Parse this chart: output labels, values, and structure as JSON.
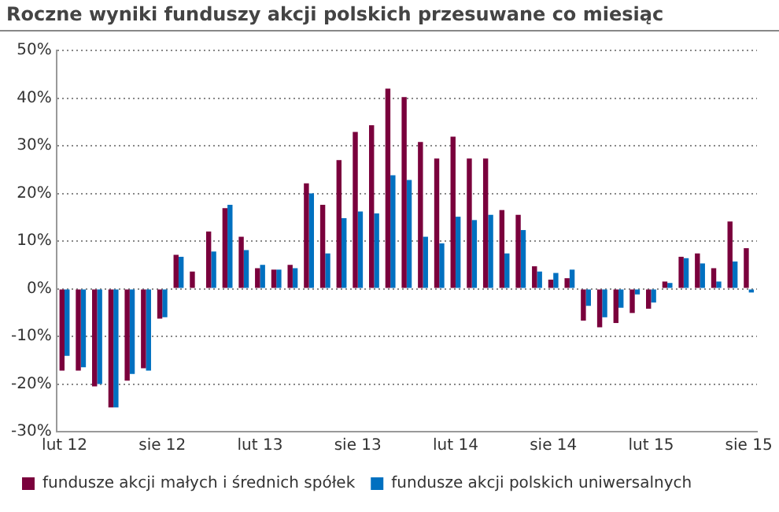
{
  "chart_data": {
    "type": "bar",
    "title": "Roczne wyniki funduszy akcji polskich przesuwane co miesiąc",
    "categories": [
      "lut 12",
      null,
      null,
      null,
      null,
      null,
      "sie 12",
      null,
      null,
      null,
      null,
      null,
      "lut 13",
      null,
      null,
      null,
      null,
      null,
      "sie 13",
      null,
      null,
      null,
      null,
      null,
      "lut 14",
      null,
      null,
      null,
      null,
      null,
      "sie 14",
      null,
      null,
      null,
      null,
      null,
      "lut 15",
      null,
      null,
      null,
      null,
      null,
      "sie 15"
    ],
    "series": [
      {
        "name": "fundusze akcji małych i średnich spółek",
        "color": "#7a003c",
        "values": [
          -17.2,
          -17.2,
          -20.5,
          -24.9,
          -19.3,
          -16.7,
          -6.3,
          7.1,
          3.6,
          12.0,
          16.9,
          10.9,
          4.3,
          4.0,
          5.0,
          22.1,
          17.6,
          27.0,
          32.9,
          34.3,
          42.0,
          40.2,
          30.8,
          27.3,
          31.9,
          27.3,
          27.3,
          16.5,
          15.5,
          4.7,
          1.9,
          2.2,
          -6.7,
          -8.1,
          -7.2,
          -5.1,
          -4.2,
          1.5,
          6.7,
          7.4,
          4.3,
          14.1,
          8.5
        ]
      },
      {
        "name": "fundusze akcji polskich uniwersalnych",
        "color": "#0070c0",
        "values": [
          -14.1,
          -16.5,
          -20.0,
          -24.9,
          -17.9,
          -17.2,
          -6.0,
          6.7,
          null,
          7.8,
          17.6,
          8.1,
          5.0,
          4.0,
          4.3,
          20.0,
          7.4,
          14.8,
          16.2,
          15.8,
          23.8,
          22.8,
          10.9,
          9.5,
          15.1,
          14.4,
          15.5,
          7.4,
          12.3,
          3.6,
          3.3,
          4.0,
          -3.6,
          -6.0,
          -4.0,
          -1.2,
          -2.9,
          1.2,
          6.4,
          5.3,
          1.5,
          5.7,
          -0.8
        ]
      }
    ],
    "ylim": [
      -30,
      50
    ],
    "yticks": [
      {
        "value": -30,
        "label": "-30%"
      },
      {
        "value": -20,
        "label": "-20%"
      },
      {
        "value": -10,
        "label": "-10%"
      },
      {
        "value": 0,
        "label": "0%"
      },
      {
        "value": 10,
        "label": "10%"
      },
      {
        "value": 20,
        "label": "20%"
      },
      {
        "value": 30,
        "label": "30%"
      },
      {
        "value": 40,
        "label": "40%"
      },
      {
        "value": 50,
        "label": "50%"
      }
    ],
    "grid": "y",
    "legend": "bottom"
  }
}
